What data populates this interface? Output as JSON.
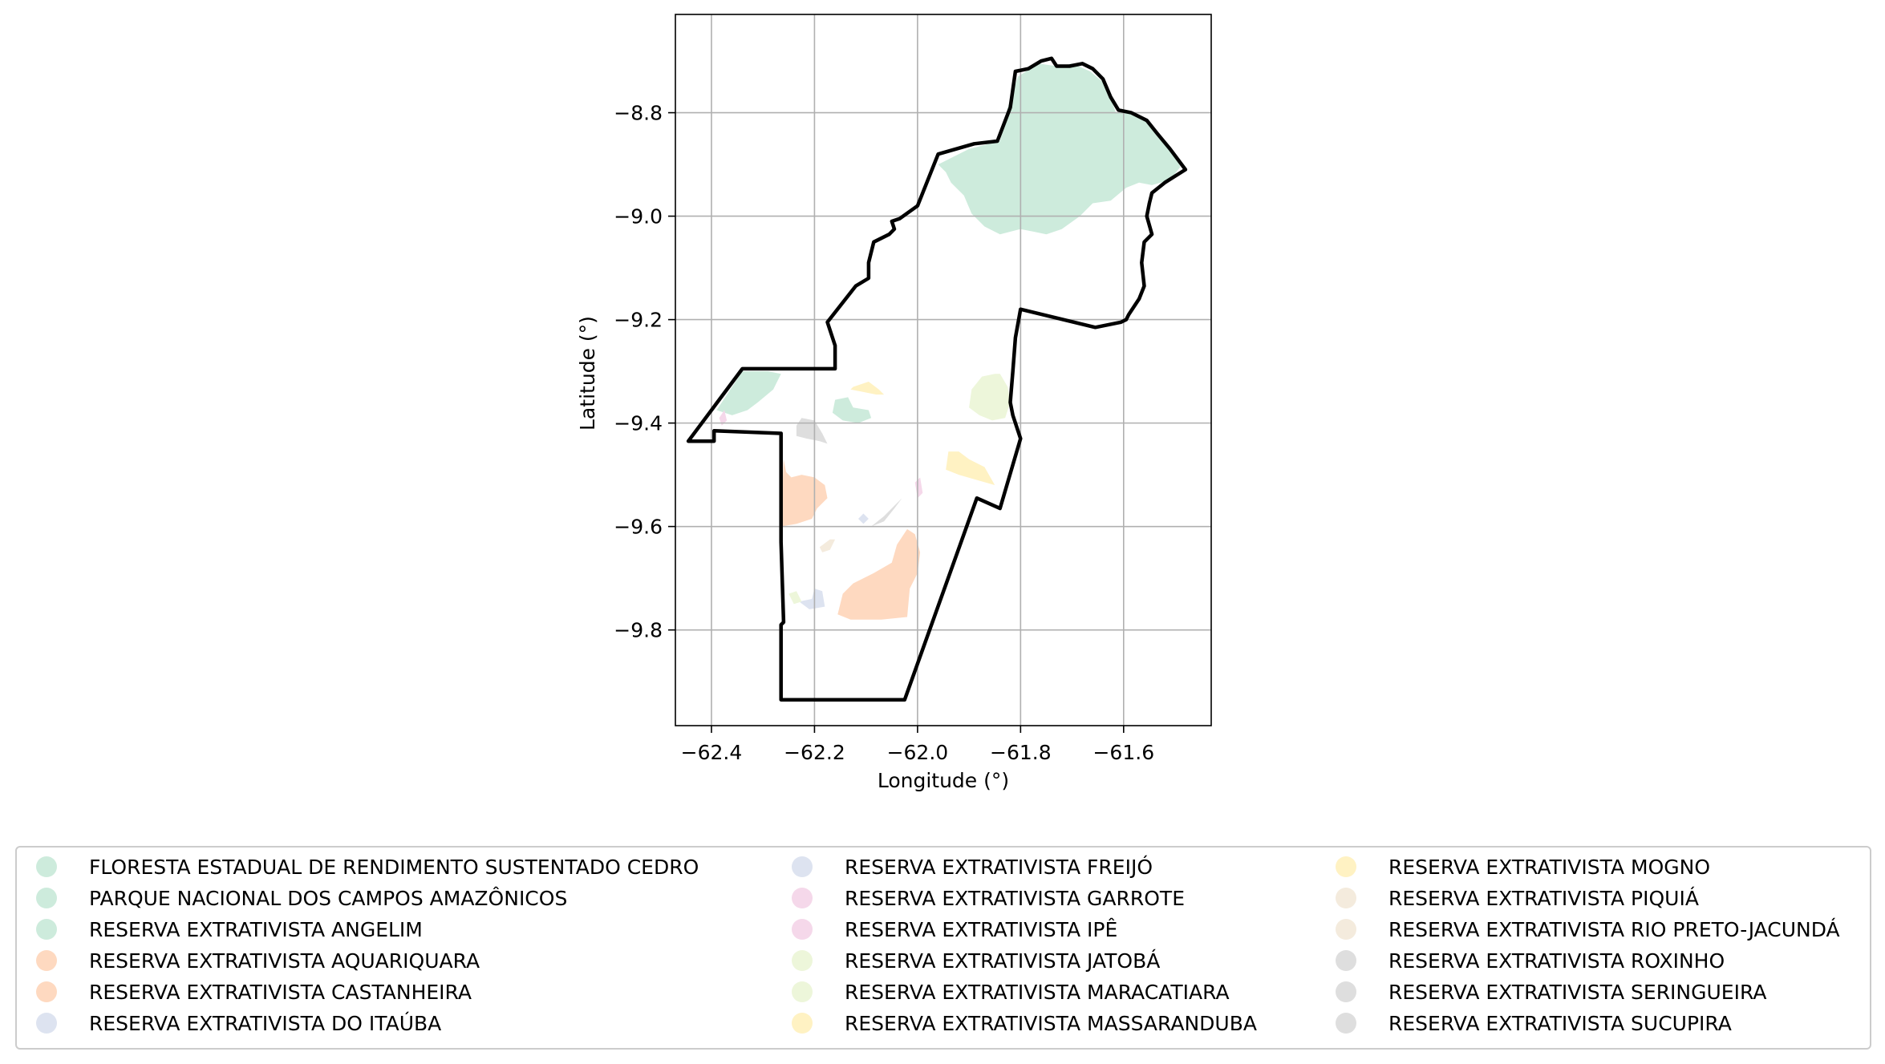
{
  "map": {
    "xlabel": "Longitude (°)",
    "ylabel": "Latitude (°)",
    "xlim": [
      -62.47,
      -61.43
    ],
    "ylim": [
      -9.985,
      -8.61
    ],
    "xticks": [
      -62.4,
      -62.2,
      -62.0,
      -61.8,
      -61.6
    ],
    "yticks": [
      -8.8,
      -9.0,
      -9.2,
      -9.4,
      -9.6,
      -9.8
    ],
    "xtick_labels": [
      "−62.4",
      "−62.2",
      "−62.0",
      "−61.8",
      "−61.6"
    ],
    "ytick_labels": [
      "−8.8",
      "−9.0",
      "−9.2",
      "−9.4",
      "−9.6",
      "−9.8"
    ],
    "grid": true,
    "boundary_color": "#000000",
    "boundary": [
      [
        -62.035,
        -9.005
      ],
      [
        -62.0,
        -8.98
      ],
      [
        -61.96,
        -8.88
      ],
      [
        -61.89,
        -8.86
      ],
      [
        -61.845,
        -8.855
      ],
      [
        -61.82,
        -8.79
      ],
      [
        -61.81,
        -8.72
      ],
      [
        -61.785,
        -8.715
      ],
      [
        -61.76,
        -8.7
      ],
      [
        -61.74,
        -8.695
      ],
      [
        -61.73,
        -8.71
      ],
      [
        -61.705,
        -8.71
      ],
      [
        -61.68,
        -8.705
      ],
      [
        -61.66,
        -8.715
      ],
      [
        -61.64,
        -8.735
      ],
      [
        -61.625,
        -8.77
      ],
      [
        -61.61,
        -8.795
      ],
      [
        -61.585,
        -8.8
      ],
      [
        -61.555,
        -8.815
      ],
      [
        -61.535,
        -8.84
      ],
      [
        -61.51,
        -8.87
      ],
      [
        -61.48,
        -8.91
      ],
      [
        -61.52,
        -8.935
      ],
      [
        -61.545,
        -8.955
      ],
      [
        -61.55,
        -8.975
      ],
      [
        -61.555,
        -9.0
      ],
      [
        -61.545,
        -9.035
      ],
      [
        -61.56,
        -9.05
      ],
      [
        -61.565,
        -9.09
      ],
      [
        -61.56,
        -9.135
      ],
      [
        -61.57,
        -9.16
      ],
      [
        -61.59,
        -9.19
      ],
      [
        -61.595,
        -9.2
      ],
      [
        -61.605,
        -9.205
      ],
      [
        -61.655,
        -9.215
      ],
      [
        -61.8,
        -9.18
      ],
      [
        -61.81,
        -9.235
      ],
      [
        -61.815,
        -9.3
      ],
      [
        -61.82,
        -9.36
      ],
      [
        -61.815,
        -9.385
      ],
      [
        -61.8,
        -9.43
      ],
      [
        -61.84,
        -9.565
      ],
      [
        -61.885,
        -9.545
      ],
      [
        -62.025,
        -9.935
      ],
      [
        -62.265,
        -9.935
      ],
      [
        -62.265,
        -9.79
      ],
      [
        -62.26,
        -9.785
      ],
      [
        -62.265,
        -9.63
      ],
      [
        -62.265,
        -9.42
      ],
      [
        -62.395,
        -9.415
      ],
      [
        -62.395,
        -9.435
      ],
      [
        -62.445,
        -9.435
      ],
      [
        -62.34,
        -9.295
      ],
      [
        -62.22,
        -9.295
      ],
      [
        -62.16,
        -9.295
      ],
      [
        -62.16,
        -9.25
      ],
      [
        -62.175,
        -9.205
      ],
      [
        -62.12,
        -9.135
      ],
      [
        -62.095,
        -9.12
      ],
      [
        -62.095,
        -9.09
      ],
      [
        -62.085,
        -9.05
      ],
      [
        -62.055,
        -9.035
      ],
      [
        -62.045,
        -9.025
      ],
      [
        -62.05,
        -9.01
      ],
      [
        -62.035,
        -9.005
      ]
    ],
    "colors": {
      "green": "#cdebdc",
      "orange": "#fed9c0",
      "blue": "#dde3f0",
      "pink": "#f5d8ea",
      "lime": "#edf6da",
      "yellow": "#fff2c3",
      "beige": "#f4ebdd",
      "gray": "#dedede"
    },
    "areas": [
      {
        "color": "green",
        "points": [
          [
            -61.96,
            -8.9
          ],
          [
            -61.9,
            -8.87
          ],
          [
            -61.84,
            -8.855
          ],
          [
            -61.825,
            -8.79
          ],
          [
            -61.805,
            -8.73
          ],
          [
            -61.765,
            -8.705
          ],
          [
            -61.73,
            -8.71
          ],
          [
            -61.7,
            -8.705
          ],
          [
            -61.665,
            -8.72
          ],
          [
            -61.635,
            -8.745
          ],
          [
            -61.615,
            -8.8
          ],
          [
            -61.58,
            -8.8
          ],
          [
            -61.55,
            -8.82
          ],
          [
            -61.525,
            -8.85
          ],
          [
            -61.5,
            -8.88
          ],
          [
            -61.49,
            -8.905
          ],
          [
            -61.51,
            -8.93
          ],
          [
            -61.545,
            -8.94
          ],
          [
            -61.57,
            -8.935
          ],
          [
            -61.595,
            -8.945
          ],
          [
            -61.625,
            -8.97
          ],
          [
            -61.66,
            -8.975
          ],
          [
            -61.685,
            -9.0
          ],
          [
            -61.72,
            -9.025
          ],
          [
            -61.75,
            -9.035
          ],
          [
            -61.775,
            -9.03
          ],
          [
            -61.8,
            -9.025
          ],
          [
            -61.84,
            -9.035
          ],
          [
            -61.87,
            -9.02
          ],
          [
            -61.895,
            -8.995
          ],
          [
            -61.91,
            -8.96
          ],
          [
            -61.935,
            -8.935
          ],
          [
            -61.945,
            -8.915
          ]
        ]
      },
      {
        "color": "green",
        "points": [
          [
            -62.39,
            -9.375
          ],
          [
            -62.34,
            -9.3
          ],
          [
            -62.29,
            -9.3
          ],
          [
            -62.265,
            -9.305
          ],
          [
            -62.28,
            -9.335
          ],
          [
            -62.31,
            -9.36
          ],
          [
            -62.33,
            -9.375
          ],
          [
            -62.36,
            -9.385
          ]
        ]
      },
      {
        "color": "green",
        "points": [
          [
            -62.16,
            -9.355
          ],
          [
            -62.135,
            -9.35
          ],
          [
            -62.125,
            -9.37
          ],
          [
            -62.095,
            -9.375
          ],
          [
            -62.09,
            -9.39
          ],
          [
            -62.115,
            -9.4
          ],
          [
            -62.145,
            -9.395
          ],
          [
            -62.165,
            -9.38
          ]
        ]
      },
      {
        "color": "pink",
        "points": [
          [
            -62.385,
            -9.39
          ],
          [
            -62.375,
            -9.375
          ],
          [
            -62.37,
            -9.395
          ],
          [
            -62.38,
            -9.405
          ]
        ]
      },
      {
        "color": "pink",
        "points": [
          [
            -62.005,
            -9.515
          ],
          [
            -61.995,
            -9.505
          ],
          [
            -61.99,
            -9.535
          ],
          [
            -62.0,
            -9.545
          ]
        ]
      },
      {
        "color": "gray",
        "points": [
          [
            -62.235,
            -9.405
          ],
          [
            -62.225,
            -9.39
          ],
          [
            -62.2,
            -9.395
          ],
          [
            -62.185,
            -9.42
          ],
          [
            -62.175,
            -9.44
          ],
          [
            -62.19,
            -9.435
          ],
          [
            -62.215,
            -9.43
          ],
          [
            -62.235,
            -9.425
          ]
        ]
      },
      {
        "color": "gray",
        "points": [
          [
            -62.09,
            -9.6
          ],
          [
            -62.065,
            -9.58
          ],
          [
            -62.045,
            -9.56
          ],
          [
            -62.03,
            -9.545
          ],
          [
            -62.045,
            -9.565
          ],
          [
            -62.065,
            -9.59
          ]
        ]
      },
      {
        "color": "yellow",
        "points": [
          [
            -62.125,
            -9.33
          ],
          [
            -62.095,
            -9.32
          ],
          [
            -62.075,
            -9.335
          ],
          [
            -62.065,
            -9.345
          ],
          [
            -62.08,
            -9.345
          ],
          [
            -62.105,
            -9.34
          ],
          [
            -62.13,
            -9.335
          ]
        ]
      },
      {
        "color": "yellow",
        "points": [
          [
            -61.94,
            -9.455
          ],
          [
            -61.92,
            -9.455
          ],
          [
            -61.9,
            -9.47
          ],
          [
            -61.87,
            -9.485
          ],
          [
            -61.85,
            -9.52
          ],
          [
            -61.885,
            -9.51
          ],
          [
            -61.92,
            -9.5
          ],
          [
            -61.945,
            -9.49
          ]
        ]
      },
      {
        "color": "lime",
        "points": [
          [
            -61.85,
            -9.305
          ],
          [
            -61.84,
            -9.305
          ],
          [
            -61.825,
            -9.33
          ],
          [
            -61.82,
            -9.36
          ],
          [
            -61.83,
            -9.39
          ],
          [
            -61.855,
            -9.395
          ],
          [
            -61.88,
            -9.385
          ],
          [
            -61.9,
            -9.37
          ],
          [
            -61.895,
            -9.335
          ],
          [
            -61.875,
            -9.31
          ]
        ]
      },
      {
        "color": "orange",
        "points": [
          [
            -62.26,
            -9.47
          ],
          [
            -62.265,
            -9.6
          ],
          [
            -62.235,
            -9.595
          ],
          [
            -62.205,
            -9.585
          ],
          [
            -62.195,
            -9.565
          ],
          [
            -62.175,
            -9.545
          ],
          [
            -62.18,
            -9.52
          ],
          [
            -62.2,
            -9.505
          ],
          [
            -62.225,
            -9.5
          ],
          [
            -62.245,
            -9.505
          ],
          [
            -62.255,
            -9.495
          ]
        ]
      },
      {
        "color": "orange",
        "points": [
          [
            -62.04,
            -9.635
          ],
          [
            -62.02,
            -9.605
          ],
          [
            -62.005,
            -9.615
          ],
          [
            -61.995,
            -9.65
          ],
          [
            -62.0,
            -9.69
          ],
          [
            -62.015,
            -9.72
          ],
          [
            -62.02,
            -9.775
          ],
          [
            -62.07,
            -9.78
          ],
          [
            -62.13,
            -9.78
          ],
          [
            -62.155,
            -9.77
          ],
          [
            -62.145,
            -9.73
          ],
          [
            -62.125,
            -9.71
          ],
          [
            -62.085,
            -9.69
          ],
          [
            -62.05,
            -9.67
          ]
        ]
      },
      {
        "color": "blue",
        "points": [
          [
            -62.2,
            -9.72
          ],
          [
            -62.185,
            -9.725
          ],
          [
            -62.18,
            -9.755
          ],
          [
            -62.21,
            -9.76
          ],
          [
            -62.23,
            -9.745
          ],
          [
            -62.205,
            -9.74
          ]
        ]
      },
      {
        "color": "blue",
        "points": [
          [
            -62.115,
            -9.585
          ],
          [
            -62.105,
            -9.575
          ],
          [
            -62.095,
            -9.585
          ],
          [
            -62.105,
            -9.595
          ]
        ]
      },
      {
        "color": "beige",
        "points": [
          [
            -62.17,
            -9.625
          ],
          [
            -62.16,
            -9.625
          ],
          [
            -62.17,
            -9.645
          ],
          [
            -62.185,
            -9.65
          ],
          [
            -62.19,
            -9.64
          ]
        ]
      },
      {
        "color": "lime",
        "points": [
          [
            -62.25,
            -9.73
          ],
          [
            -62.235,
            -9.725
          ],
          [
            -62.225,
            -9.745
          ],
          [
            -62.24,
            -9.75
          ]
        ]
      }
    ]
  },
  "legend": {
    "entries": [
      {
        "label": "FLORESTA ESTADUAL DE RENDIMENTO SUSTENTADO CEDRO",
        "color": "#cdebdc"
      },
      {
        "label": "PARQUE NACIONAL DOS CAMPOS AMAZÔNICOS",
        "color": "#cdebdc"
      },
      {
        "label": "RESERVA EXTRATIVISTA ANGELIM",
        "color": "#cdebdc"
      },
      {
        "label": "RESERVA EXTRATIVISTA AQUARIQUARA",
        "color": "#fed9c0"
      },
      {
        "label": "RESERVA EXTRATIVISTA CASTANHEIRA",
        "color": "#fed9c0"
      },
      {
        "label": "RESERVA EXTRATIVISTA DO ITAÚBA",
        "color": "#dde3f0"
      },
      {
        "label": "RESERVA EXTRATIVISTA FREIJÓ",
        "color": "#dde3f0"
      },
      {
        "label": "RESERVA EXTRATIVISTA GARROTE",
        "color": "#f5d8ea"
      },
      {
        "label": "RESERVA EXTRATIVISTA IPÊ",
        "color": "#f5d8ea"
      },
      {
        "label": "RESERVA EXTRATIVISTA JATOBÁ",
        "color": "#edf6da"
      },
      {
        "label": "RESERVA EXTRATIVISTA MARACATIARA",
        "color": "#edf6da"
      },
      {
        "label": "RESERVA EXTRATIVISTA MASSARANDUBA",
        "color": "#fff2c3"
      },
      {
        "label": "RESERVA EXTRATIVISTA MOGNO",
        "color": "#fff2c3"
      },
      {
        "label": "RESERVA EXTRATIVISTA PIQUIÁ",
        "color": "#f4ebdd"
      },
      {
        "label": "RESERVA EXTRATIVISTA RIO PRETO-JACUNDÁ",
        "color": "#f4ebdd"
      },
      {
        "label": "RESERVA EXTRATIVISTA ROXINHO",
        "color": "#dedede"
      },
      {
        "label": "RESERVA EXTRATIVISTA SERINGUEIRA",
        "color": "#dedede"
      },
      {
        "label": "RESERVA EXTRATIVISTA SUCUPIRA",
        "color": "#dedede"
      }
    ]
  }
}
